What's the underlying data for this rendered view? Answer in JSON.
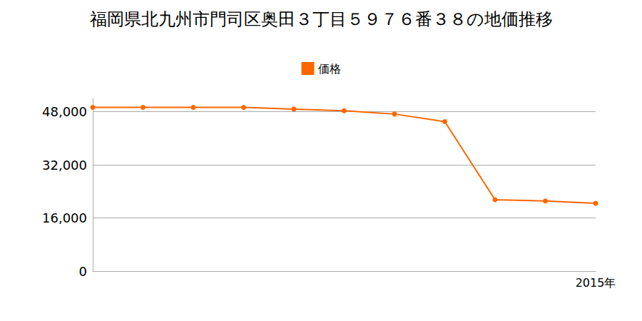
{
  "chart_data": {
    "type": "line",
    "title": "福岡県北九州市門司区奥田３丁目５９７６番３８の地価推移",
    "categories": [
      null,
      null,
      null,
      null,
      null,
      null,
      null,
      null,
      null,
      null,
      "2015年"
    ],
    "series": [
      {
        "name": "価格",
        "color": "#ff6600",
        "marker": "circle",
        "values": [
          49300,
          49300,
          49300,
          49300,
          48800,
          48300,
          47300,
          45000,
          21500,
          21100,
          20400
        ]
      }
    ],
    "ylim": [
      0,
      52000
    ],
    "yticks": [
      0,
      {
        "value": 16000,
        "label": "16,000"
      },
      {
        "value": 32000,
        "label": "32,000"
      },
      {
        "value": 48000,
        "label": "48,000"
      }
    ],
    "grid": true,
    "legend": "top"
  }
}
